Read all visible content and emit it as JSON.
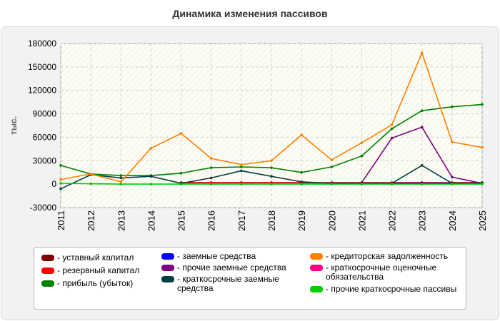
{
  "title": "Динамика изменения пассивов",
  "chart_data": {
    "type": "line",
    "title": "Динамика изменения пассивов",
    "xlabel": "",
    "ylabel": "тыс.",
    "x": [
      "2011",
      "2012",
      "2013",
      "2014",
      "2015",
      "2016",
      "2017",
      "2018",
      "2019",
      "2020",
      "2021",
      "2022",
      "2023",
      "2024",
      "2025"
    ],
    "ylim": [
      -30000,
      180000
    ],
    "yticks": [
      "-30000",
      "0",
      "30000",
      "60000",
      "90000",
      "120000",
      "150000",
      "180000"
    ],
    "grid": true,
    "legend_position": "bottom",
    "series": [
      {
        "name": "- уставный капитал",
        "color": "#800000",
        "values": [
          null,
          null,
          null,
          null,
          2000,
          2000,
          2000,
          2000,
          2000,
          2000,
          2000,
          2000,
          2000,
          2000,
          2000
        ]
      },
      {
        "name": "- резервный капитал",
        "color": "#ff0000",
        "values": [
          null,
          null,
          null,
          null,
          1500,
          1500,
          1500,
          1500,
          1500,
          1500,
          1500,
          1500,
          1500,
          1500,
          1500
        ]
      },
      {
        "name": "- прибыль (убыток)",
        "color": "#008000",
        "values": [
          24000,
          13000,
          11000,
          11000,
          14000,
          21000,
          22000,
          21000,
          15000,
          22000,
          36000,
          71000,
          94000,
          99000,
          102000
        ]
      },
      {
        "name": "- заемные средства",
        "color": "#0000ff",
        "values": [
          null,
          null,
          null,
          null,
          null,
          null,
          null,
          null,
          null,
          1000,
          1000,
          1000,
          1000,
          1000,
          1000
        ]
      },
      {
        "name": "- прочие заемные средства",
        "color": "#800080",
        "values": [
          null,
          null,
          null,
          null,
          null,
          null,
          null,
          null,
          null,
          null,
          2000,
          59000,
          73000,
          9000,
          1000
        ]
      },
      {
        "name": "- краткосрочные заемные средства",
        "color": "#004040",
        "values": [
          -6000,
          12000,
          8000,
          10000,
          1000,
          8000,
          17000,
          10000,
          3000,
          1000,
          1000,
          1000,
          24000,
          1000,
          1000
        ]
      },
      {
        "name": "- кредиторская задолженность",
        "color": "#ff8000",
        "values": [
          6000,
          13000,
          3000,
          46000,
          65000,
          33000,
          25000,
          30000,
          63000,
          31000,
          53000,
          76000,
          168000,
          54000,
          47000
        ]
      },
      {
        "name": "- краткосрочные оценочные обязательства",
        "color": "#ff0080",
        "values": [
          null,
          null,
          null,
          null,
          null,
          null,
          null,
          null,
          null,
          null,
          null,
          null,
          null,
          null,
          null
        ]
      },
      {
        "name": "- прочие краткосрочные пассивы",
        "color": "#00cc00",
        "values": [
          1000,
          500,
          0,
          0,
          0,
          0,
          0,
          0,
          0,
          0,
          0,
          0,
          0,
          0,
          0
        ]
      }
    ]
  }
}
